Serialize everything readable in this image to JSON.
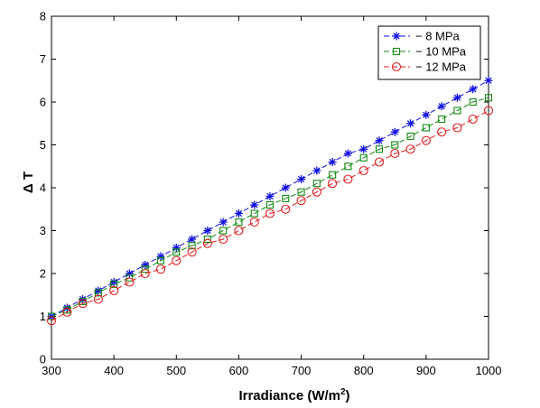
{
  "chart_data": {
    "type": "line",
    "title": "",
    "xlabel": "Irradiance (W/m",
    "xlabel_superscript": "2",
    "xlabel_suffix": ")",
    "ylabel": "Δ T",
    "xlim": [
      300,
      1000
    ],
    "ylim": [
      0,
      8
    ],
    "xticks": [
      300,
      400,
      500,
      600,
      700,
      800,
      900,
      1000
    ],
    "yticks": [
      0,
      1,
      2,
      3,
      4,
      5,
      6,
      7,
      8
    ],
    "grid": false,
    "legend_position": "top-right",
    "x": [
      300,
      325,
      350,
      375,
      400,
      425,
      450,
      475,
      500,
      525,
      550,
      575,
      600,
      625,
      650,
      675,
      700,
      725,
      750,
      775,
      800,
      825,
      850,
      875,
      900,
      925,
      950,
      975,
      1000
    ],
    "series": [
      {
        "name": "8 MPa",
        "color": "#1010e0",
        "marker": "asterisk",
        "values": [
          1.0,
          1.2,
          1.4,
          1.6,
          1.8,
          2.0,
          2.2,
          2.4,
          2.6,
          2.8,
          3.0,
          3.2,
          3.4,
          3.6,
          3.8,
          4.0,
          4.2,
          4.4,
          4.6,
          4.8,
          4.9,
          5.1,
          5.3,
          5.5,
          5.7,
          5.9,
          6.1,
          6.3,
          6.5
        ]
      },
      {
        "name": "10 MPa",
        "color": "#138a13",
        "marker": "square",
        "values": [
          1.0,
          1.15,
          1.35,
          1.55,
          1.75,
          1.9,
          2.1,
          2.3,
          2.5,
          2.65,
          2.8,
          3.0,
          3.2,
          3.4,
          3.6,
          3.75,
          3.9,
          4.1,
          4.3,
          4.5,
          4.7,
          4.9,
          5.0,
          5.2,
          5.4,
          5.6,
          5.8,
          6.0,
          6.1
        ]
      },
      {
        "name": "12 MPa",
        "color": "#e02020",
        "marker": "circle",
        "values": [
          0.9,
          1.1,
          1.3,
          1.4,
          1.6,
          1.8,
          2.0,
          2.1,
          2.3,
          2.5,
          2.7,
          2.8,
          3.0,
          3.2,
          3.4,
          3.5,
          3.7,
          3.9,
          4.1,
          4.2,
          4.4,
          4.6,
          4.8,
          4.9,
          5.1,
          5.3,
          5.4,
          5.6,
          5.8
        ]
      }
    ]
  }
}
